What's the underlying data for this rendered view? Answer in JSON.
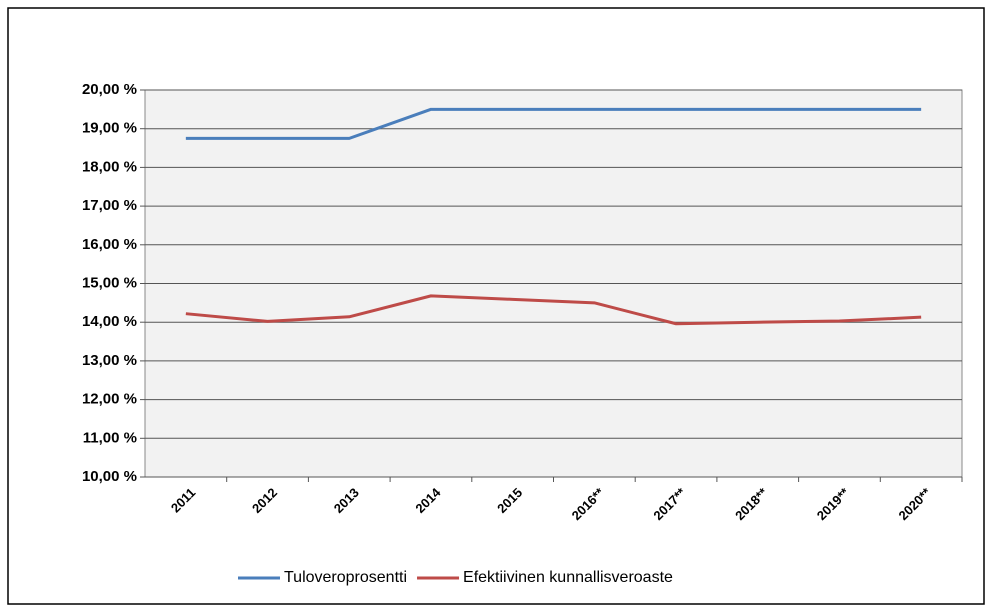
{
  "chart_data": {
    "type": "line",
    "categories": [
      "2011",
      "2012",
      "2013",
      "2014",
      "2015",
      "2016**",
      "2017**",
      "2018**",
      "2019**",
      "2020**"
    ],
    "series": [
      {
        "name": "Tuloveroprosentti",
        "color": "#4a7ebb",
        "values": [
          18.75,
          18.75,
          18.75,
          19.5,
          19.5,
          19.5,
          19.5,
          19.5,
          19.5,
          19.5
        ]
      },
      {
        "name": "Efektiivinen kunnallisveroaste",
        "color": "#be4b48",
        "values": [
          14.22,
          14.02,
          14.14,
          14.68,
          14.59,
          14.5,
          13.96,
          14.0,
          14.03,
          14.13
        ]
      }
    ],
    "ylim": [
      10,
      20
    ],
    "yticks": [
      {
        "value": 10,
        "label": "10,00 %"
      },
      {
        "value": 11,
        "label": "11,00 %"
      },
      {
        "value": 12,
        "label": "12,00 %"
      },
      {
        "value": 13,
        "label": "13,00 %"
      },
      {
        "value": 14,
        "label": "14,00 %"
      },
      {
        "value": 15,
        "label": "15,00 %"
      },
      {
        "value": 16,
        "label": "16,00 %"
      },
      {
        "value": 17,
        "label": "17,00 %"
      },
      {
        "value": 18,
        "label": "18,00 %"
      },
      {
        "value": 19,
        "label": "19,00 %"
      },
      {
        "value": 20,
        "label": "20,00 %"
      }
    ],
    "grid": true,
    "legend": "bottom"
  }
}
